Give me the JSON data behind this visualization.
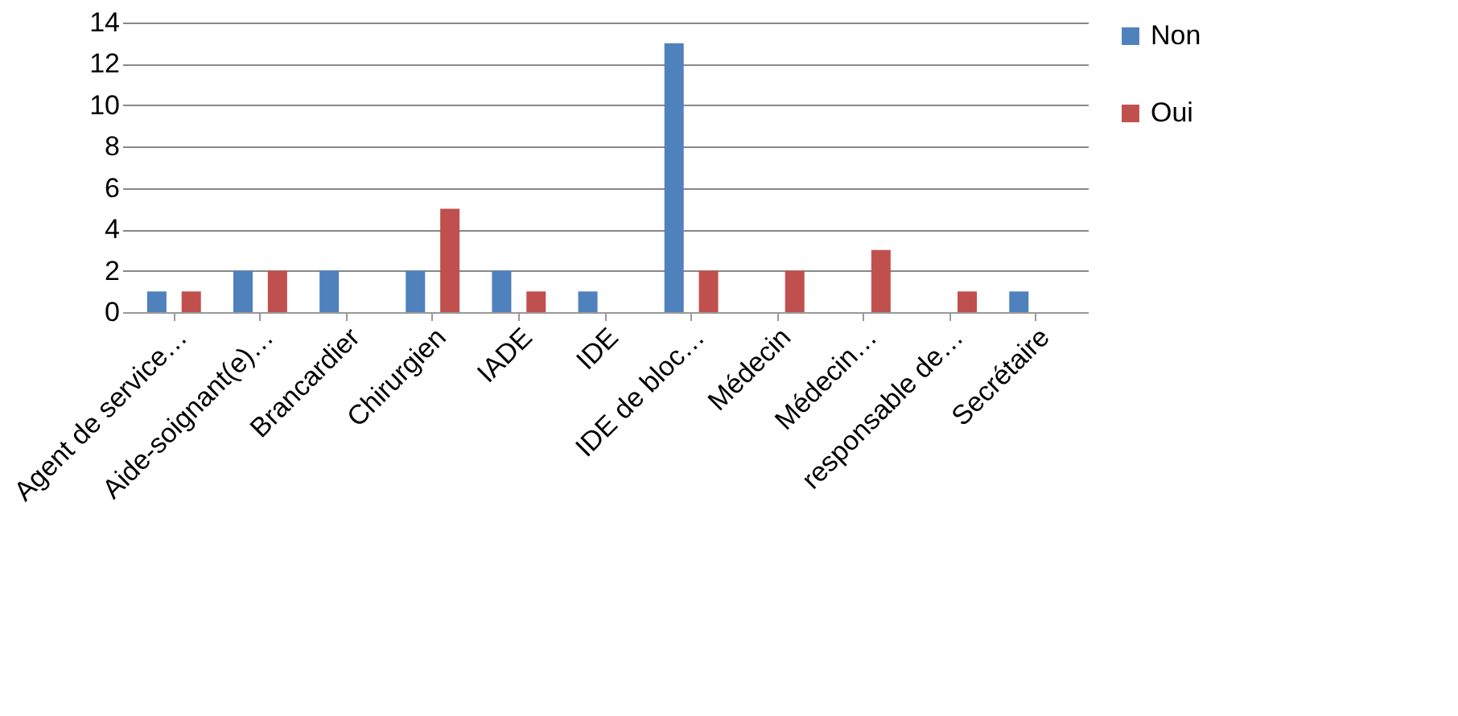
{
  "chart_data": {
    "type": "bar",
    "categories": [
      "Agent de service…",
      "Aide-soignant(e)…",
      "Brancardier",
      "Chirurgien",
      "IADE",
      "IDE",
      "IDE de bloc…",
      "Médecin",
      "Médecin…",
      "responsable de…",
      "Secrétaire"
    ],
    "series": [
      {
        "name": "Non",
        "color": "#4f81bd",
        "values": [
          1,
          2,
          2,
          2,
          2,
          1,
          13,
          0,
          0,
          0,
          1
        ]
      },
      {
        "name": "Oui",
        "color": "#c0504d",
        "values": [
          1,
          2,
          0,
          5,
          1,
          0,
          2,
          2,
          3,
          1,
          0
        ]
      }
    ],
    "ylim": [
      0,
      14
    ],
    "yticks": [
      0,
      2,
      4,
      6,
      8,
      10,
      12,
      14
    ],
    "grid": "y",
    "legend": "right"
  }
}
